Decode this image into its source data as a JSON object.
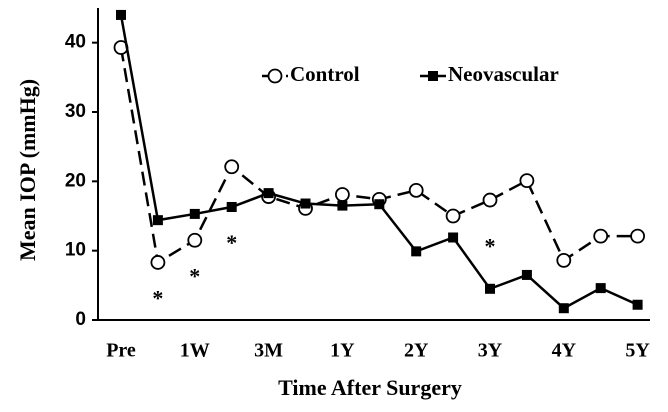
{
  "chart_data": {
    "type": "line",
    "x_label": "Time After Surgery",
    "y_label": "Mean IOP (mmHg)",
    "categories": [
      "Pre",
      null,
      "1W",
      null,
      "3M",
      null,
      "1Y",
      null,
      "2Y",
      null,
      "3Y",
      null,
      "4Y",
      null,
      "5Y"
    ],
    "series": [
      {
        "name": "Control",
        "color": "#000000",
        "dashed": true,
        "marker": "open-circle",
        "values": [
          39.3,
          8.3,
          11.5,
          22.1,
          17.8,
          16.1,
          18.1,
          17.4,
          18.7,
          15,
          17.3,
          20.1,
          8.6,
          12.1,
          12.1
        ]
      },
      {
        "name": "Neovascular",
        "color": "#000000",
        "dashed": false,
        "marker": "filled-square",
        "values": [
          44,
          14.4,
          15.3,
          16.3,
          18.3,
          16.8,
          16.5,
          16.7,
          9.9,
          11.9,
          4.5,
          6.5,
          1.7,
          4.6,
          2.2
        ]
      }
    ],
    "significance_marks": [
      null,
      "*",
      "*",
      "*",
      null,
      null,
      null,
      null,
      null,
      null,
      "*",
      null,
      null,
      null,
      null
    ],
    "ylim": [
      0,
      45
    ],
    "yticks": [
      0,
      10,
      20,
      30,
      40
    ],
    "grid": false,
    "legend": "top-right"
  }
}
